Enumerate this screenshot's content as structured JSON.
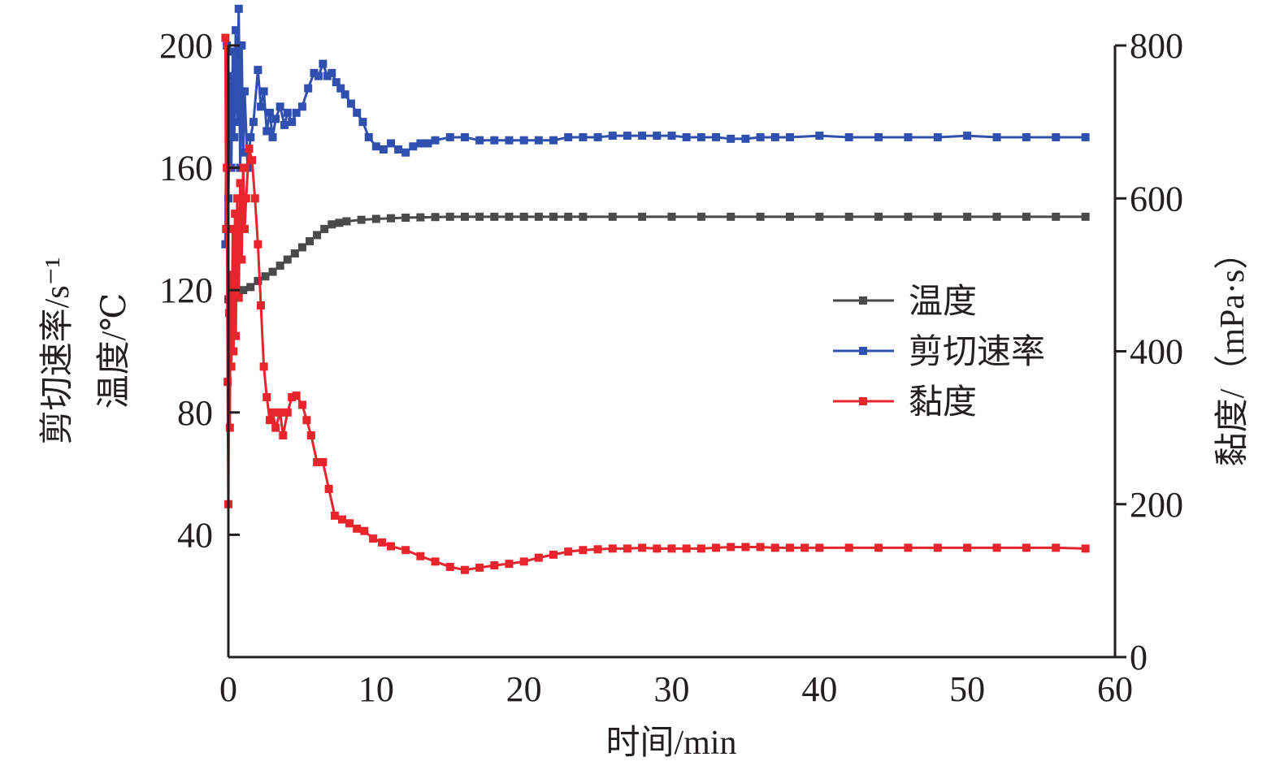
{
  "chart_data": {
    "type": "line",
    "title": "",
    "xlabel": "时间/min",
    "ylabel_left": [
      "剪切速率/s⁻¹",
      "温度/℃"
    ],
    "ylabel_right": "黏度/（mPa·s）",
    "xlim": [
      0,
      60
    ],
    "ylim_left": [
      0,
      200
    ],
    "ylim_right": [
      0,
      800
    ],
    "xticks": [
      "0",
      "10",
      "20",
      "30",
      "40",
      "50",
      "60"
    ],
    "yticks_left": [
      "40",
      "80",
      "120",
      "160",
      "200"
    ],
    "yticks_right": [
      "0",
      "200",
      "400",
      "600",
      "800"
    ],
    "grid": false,
    "legend_position": "right-middle",
    "series": [
      {
        "name": "温度",
        "axis": "left",
        "color": "#4a4a4a",
        "points": [
          [
            0,
            117
          ],
          [
            0.5,
            119
          ],
          [
            1,
            120
          ],
          [
            1.5,
            121
          ],
          [
            2,
            123
          ],
          [
            2.5,
            124.5
          ],
          [
            3,
            126
          ],
          [
            3.5,
            128
          ],
          [
            4,
            130
          ],
          [
            4.5,
            132
          ],
          [
            5,
            134
          ],
          [
            5.5,
            136
          ],
          [
            6,
            138
          ],
          [
            6.5,
            140
          ],
          [
            7,
            141.5
          ],
          [
            7.5,
            142
          ],
          [
            8,
            142.5
          ],
          [
            9,
            143
          ],
          [
            10,
            143.3
          ],
          [
            11,
            143.5
          ],
          [
            12,
            143.7
          ],
          [
            13,
            143.8
          ],
          [
            14,
            143.9
          ],
          [
            15,
            144
          ],
          [
            16,
            144
          ],
          [
            17,
            144
          ],
          [
            18,
            144
          ],
          [
            19,
            144
          ],
          [
            20,
            144
          ],
          [
            21,
            144
          ],
          [
            22,
            144
          ],
          [
            23,
            144
          ],
          [
            24,
            144
          ],
          [
            26,
            144
          ],
          [
            28,
            144
          ],
          [
            30,
            144
          ],
          [
            32,
            144
          ],
          [
            34,
            144
          ],
          [
            36,
            144
          ],
          [
            38,
            144
          ],
          [
            40,
            144
          ],
          [
            42,
            144
          ],
          [
            44,
            144
          ],
          [
            46,
            144
          ],
          [
            48,
            144
          ],
          [
            50,
            144
          ],
          [
            52,
            144
          ],
          [
            54,
            144
          ],
          [
            56,
            144
          ],
          [
            58,
            144
          ]
        ]
      },
      {
        "name": "剪切速率",
        "axis": "left",
        "color": "#3050b0",
        "points": [
          [
            -0.2,
            135
          ],
          [
            -0.1,
            200
          ],
          [
            0,
            150
          ],
          [
            0.1,
            190
          ],
          [
            0.2,
            160
          ],
          [
            0.3,
            198
          ],
          [
            0.4,
            170
          ],
          [
            0.5,
            205
          ],
          [
            0.6,
            175
          ],
          [
            0.7,
            212
          ],
          [
            0.8,
            160
          ],
          [
            0.9,
            200
          ],
          [
            1.0,
            165
          ],
          [
            1.1,
            185
          ],
          [
            1.3,
            160
          ],
          [
            1.5,
            170
          ],
          [
            1.7,
            175
          ],
          [
            2.0,
            192
          ],
          [
            2.2,
            180
          ],
          [
            2.4,
            185
          ],
          [
            2.6,
            172
          ],
          [
            2.8,
            178
          ],
          [
            3.0,
            170
          ],
          [
            3.2,
            176
          ],
          [
            3.5,
            180
          ],
          [
            3.8,
            174
          ],
          [
            4.0,
            178
          ],
          [
            4.3,
            175
          ],
          [
            4.6,
            178
          ],
          [
            5.0,
            180
          ],
          [
            5.4,
            186
          ],
          [
            5.8,
            191
          ],
          [
            6.1,
            190
          ],
          [
            6.4,
            194
          ],
          [
            6.7,
            190
          ],
          [
            7.0,
            191
          ],
          [
            7.3,
            188
          ],
          [
            7.6,
            186
          ],
          [
            7.9,
            184
          ],
          [
            8.3,
            181
          ],
          [
            8.7,
            178
          ],
          [
            9.1,
            175
          ],
          [
            9.5,
            170
          ],
          [
            10,
            167
          ],
          [
            10.5,
            166
          ],
          [
            11,
            168
          ],
          [
            11.5,
            166
          ],
          [
            12,
            165
          ],
          [
            12.5,
            167
          ],
          [
            13,
            168
          ],
          [
            13.5,
            168
          ],
          [
            14,
            169
          ],
          [
            15,
            170
          ],
          [
            16,
            170
          ],
          [
            17,
            169
          ],
          [
            18,
            169
          ],
          [
            19,
            169
          ],
          [
            20,
            169
          ],
          [
            21,
            169
          ],
          [
            22,
            169
          ],
          [
            23,
            170
          ],
          [
            24,
            170
          ],
          [
            25,
            170
          ],
          [
            26,
            170.5
          ],
          [
            27,
            170.5
          ],
          [
            28,
            170.5
          ],
          [
            29,
            170.5
          ],
          [
            30,
            170.5
          ],
          [
            31,
            170
          ],
          [
            32,
            170
          ],
          [
            33,
            170
          ],
          [
            34,
            169.5
          ],
          [
            35,
            169.5
          ],
          [
            36,
            170
          ],
          [
            37,
            170
          ],
          [
            38,
            170
          ],
          [
            40,
            170.5
          ],
          [
            42,
            170
          ],
          [
            44,
            170
          ],
          [
            46,
            170
          ],
          [
            48,
            170
          ],
          [
            50,
            170.5
          ],
          [
            52,
            170
          ],
          [
            54,
            170
          ],
          [
            56,
            170
          ],
          [
            58,
            170
          ]
        ]
      },
      {
        "name": "黏度",
        "axis": "right",
        "color": "#e8252c",
        "points": [
          [
            -0.2,
            810
          ],
          [
            -0.15,
            560
          ],
          [
            -0.1,
            640
          ],
          [
            -0.05,
            360
          ],
          [
            0,
            200
          ],
          [
            0.05,
            450
          ],
          [
            0.1,
            300
          ],
          [
            0.15,
            500
          ],
          [
            0.2,
            380
          ],
          [
            0.3,
            560
          ],
          [
            0.35,
            400
          ],
          [
            0.45,
            580
          ],
          [
            0.5,
            420
          ],
          [
            0.6,
            600
          ],
          [
            0.7,
            470
          ],
          [
            0.8,
            620
          ],
          [
            0.9,
            520
          ],
          [
            1.0,
            640
          ],
          [
            1.1,
            560
          ],
          [
            1.2,
            600
          ],
          [
            1.4,
            665
          ],
          [
            1.6,
            650
          ],
          [
            1.8,
            600
          ],
          [
            2.0,
            540
          ],
          [
            2.2,
            460
          ],
          [
            2.4,
            380
          ],
          [
            2.6,
            340
          ],
          [
            2.8,
            310
          ],
          [
            3.0,
            320
          ],
          [
            3.2,
            300
          ],
          [
            3.5,
            320
          ],
          [
            3.7,
            290
          ],
          [
            4.0,
            320
          ],
          [
            4.3,
            340
          ],
          [
            4.6,
            342
          ],
          [
            5.0,
            330
          ],
          [
            5.3,
            310
          ],
          [
            5.6,
            290
          ],
          [
            6.0,
            255
          ],
          [
            6.4,
            255
          ],
          [
            6.8,
            220
          ],
          [
            7.2,
            185
          ],
          [
            7.7,
            180
          ],
          [
            8.2,
            175
          ],
          [
            8.7,
            168
          ],
          [
            9.2,
            165
          ],
          [
            9.8,
            155
          ],
          [
            10.4,
            150
          ],
          [
            11,
            145
          ],
          [
            12,
            140
          ],
          [
            13,
            132
          ],
          [
            14,
            125
          ],
          [
            15,
            118
          ],
          [
            16,
            114
          ],
          [
            17,
            117
          ],
          [
            18,
            120
          ],
          [
            19,
            122
          ],
          [
            20,
            125
          ],
          [
            21,
            130
          ],
          [
            22,
            134
          ],
          [
            23,
            138
          ],
          [
            24,
            140
          ],
          [
            25,
            141
          ],
          [
            26,
            142
          ],
          [
            27,
            142
          ],
          [
            28,
            143
          ],
          [
            29,
            142
          ],
          [
            30,
            142
          ],
          [
            31,
            142
          ],
          [
            32,
            142
          ],
          [
            33,
            143
          ],
          [
            34,
            144
          ],
          [
            35,
            144
          ],
          [
            36,
            144
          ],
          [
            37,
            143
          ],
          [
            38,
            143
          ],
          [
            39,
            143
          ],
          [
            40,
            143
          ],
          [
            42,
            143
          ],
          [
            44,
            143
          ],
          [
            46,
            143
          ],
          [
            48,
            143
          ],
          [
            50,
            143
          ],
          [
            52,
            143
          ],
          [
            54,
            143
          ],
          [
            56,
            143
          ],
          [
            58,
            142
          ]
        ]
      }
    ]
  }
}
